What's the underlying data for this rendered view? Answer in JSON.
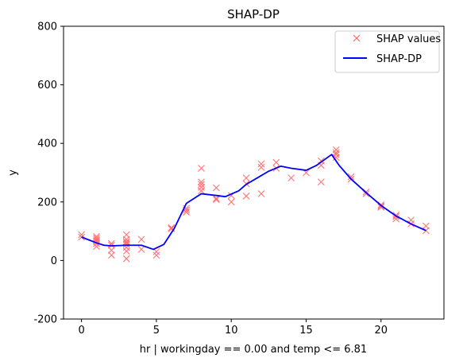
{
  "chart_data": {
    "type": "scatter",
    "title": "SHAP-DP",
    "xlabel": "hr | workingday == 0.00 and temp <= 6.81",
    "ylabel": "y",
    "xlim": [
      -1.2,
      24.2
    ],
    "ylim": [
      -200,
      800
    ],
    "xticks": [
      0,
      5,
      10,
      15,
      20
    ],
    "yticks": [
      -200,
      0,
      200,
      400,
      600,
      800
    ],
    "grid": false,
    "legend_position": "top-right",
    "series": [
      {
        "name": "SHAP values",
        "kind": "scatter",
        "marker": "x",
        "color": "#ff6666",
        "points": [
          [
            0,
            80
          ],
          [
            0,
            88
          ],
          [
            1,
            48
          ],
          [
            1,
            58
          ],
          [
            1,
            65
          ],
          [
            1,
            70
          ],
          [
            1,
            76
          ],
          [
            1,
            82
          ],
          [
            2,
            18
          ],
          [
            2,
            35
          ],
          [
            2,
            52
          ],
          [
            2,
            58
          ],
          [
            3,
            6
          ],
          [
            3,
            32
          ],
          [
            3,
            45
          ],
          [
            3,
            55
          ],
          [
            3,
            60
          ],
          [
            3,
            65
          ],
          [
            3,
            72
          ],
          [
            3,
            88
          ],
          [
            4,
            38
          ],
          [
            4,
            72
          ],
          [
            5,
            18
          ],
          [
            5,
            30
          ],
          [
            6,
            108
          ],
          [
            6,
            112
          ],
          [
            7,
            165
          ],
          [
            7,
            172
          ],
          [
            7,
            178
          ],
          [
            8,
            238
          ],
          [
            8,
            250
          ],
          [
            8,
            260
          ],
          [
            8,
            268
          ],
          [
            8,
            315
          ],
          [
            9,
            208
          ],
          [
            9,
            212
          ],
          [
            9,
            248
          ],
          [
            10,
            200
          ],
          [
            10,
            222
          ],
          [
            11,
            220
          ],
          [
            11,
            262
          ],
          [
            11,
            282
          ],
          [
            12,
            228
          ],
          [
            12,
            318
          ],
          [
            12,
            330
          ],
          [
            13,
            315
          ],
          [
            13,
            335
          ],
          [
            14,
            282
          ],
          [
            15,
            300
          ],
          [
            16,
            268
          ],
          [
            16,
            325
          ],
          [
            16,
            340
          ],
          [
            17,
            352
          ],
          [
            17,
            362
          ],
          [
            17,
            368
          ],
          [
            17,
            378
          ],
          [
            18,
            278
          ],
          [
            18,
            286
          ],
          [
            19,
            228
          ],
          [
            19,
            234
          ],
          [
            20,
            182
          ],
          [
            20,
            186
          ],
          [
            20,
            190
          ],
          [
            21,
            142
          ],
          [
            21,
            150
          ],
          [
            21,
            155
          ],
          [
            22,
            125
          ],
          [
            22,
            138
          ],
          [
            23,
            102
          ],
          [
            23,
            118
          ]
        ]
      },
      {
        "name": "SHAP-DP",
        "kind": "line",
        "color": "#0000ff",
        "points": [
          [
            0,
            80
          ],
          [
            0.5,
            70
          ],
          [
            1,
            60
          ],
          [
            1.5,
            52
          ],
          [
            2,
            50
          ],
          [
            3,
            52
          ],
          [
            4,
            52
          ],
          [
            4.8,
            38
          ],
          [
            5.5,
            55
          ],
          [
            6.2,
            110
          ],
          [
            7,
            195
          ],
          [
            8,
            228
          ],
          [
            9,
            222
          ],
          [
            9.6,
            218
          ],
          [
            10.5,
            238
          ],
          [
            11,
            260
          ],
          [
            12,
            290
          ],
          [
            12.5,
            305
          ],
          [
            13.3,
            322
          ],
          [
            14,
            315
          ],
          [
            15,
            308
          ],
          [
            15.7,
            325
          ],
          [
            16.7,
            362
          ],
          [
            17.2,
            325
          ],
          [
            18,
            278
          ],
          [
            19,
            232
          ],
          [
            20,
            188
          ],
          [
            21,
            152
          ],
          [
            22,
            125
          ],
          [
            23,
            102
          ]
        ]
      }
    ]
  }
}
